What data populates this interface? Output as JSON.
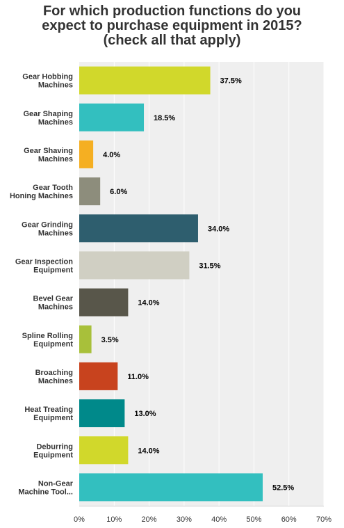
{
  "chart_data": {
    "type": "bar",
    "orientation": "horizontal",
    "title_lines": [
      "For which production functions do you",
      "expect to purchase equipment in 2015?",
      "(check all that apply)"
    ],
    "categories": [
      [
        "Gear Hobbing",
        "Machines"
      ],
      [
        "Gear Shaping",
        "Machines"
      ],
      [
        "Gear Shaving",
        "Machines"
      ],
      [
        "Gear Tooth",
        "Honing Machines"
      ],
      [
        "Gear Grinding",
        "Machines"
      ],
      [
        "Gear Inspection",
        "Equipment"
      ],
      [
        "Bevel Gear",
        "Machines"
      ],
      [
        "Spline Rolling",
        "Equipment"
      ],
      [
        "Broaching",
        "Machines"
      ],
      [
        "Heat Treating",
        "Equipment"
      ],
      [
        "Deburring",
        "Equipment"
      ],
      [
        "Non-Gear",
        "Machine Tool..."
      ]
    ],
    "values": [
      37.5,
      18.5,
      4.0,
      6.0,
      34.0,
      31.5,
      14.0,
      3.5,
      11.0,
      13.0,
      14.0,
      52.5
    ],
    "value_labels": [
      "37.5%",
      "18.5%",
      "4.0%",
      "6.0%",
      "34.0%",
      "31.5%",
      "14.0%",
      "3.5%",
      "11.0%",
      "13.0%",
      "14.0%",
      "52.5%"
    ],
    "colors": [
      "#d1d82b",
      "#33bfbf",
      "#f5af22",
      "#8d8d7c",
      "#2e5e6e",
      "#d0cfc3",
      "#58564a",
      "#a8c03a",
      "#c8431e",
      "#00898a",
      "#d1d82b",
      "#33bfbf"
    ],
    "xlim": [
      0,
      70
    ],
    "x_ticks": [
      0,
      10,
      20,
      30,
      40,
      50,
      60,
      70
    ],
    "x_tick_labels": [
      "0%",
      "10%",
      "20%",
      "30%",
      "40%",
      "50%",
      "60%",
      "70%"
    ],
    "grid": true,
    "legend": "none",
    "plot_background": "#efefef",
    "grid_color": "#ffffff"
  }
}
